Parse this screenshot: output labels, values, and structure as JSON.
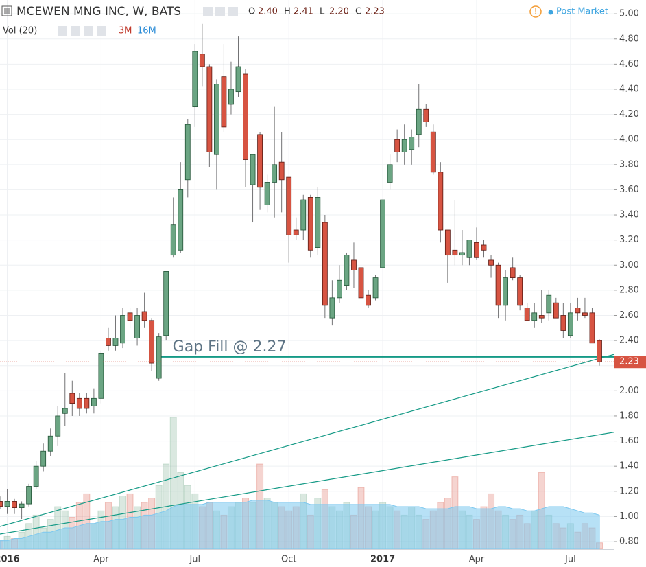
{
  "chart_data": {
    "type": "candlestick",
    "title": "MCEWEN MNG INC, W, BATS",
    "ohlc_legend": [
      {
        "label": "O",
        "value": "2.40"
      },
      {
        "label": "H",
        "value": "2.41"
      },
      {
        "label": "L",
        "value": "2.20"
      },
      {
        "label": "C",
        "value": "2.23"
      }
    ],
    "volume_legend": {
      "label": "Vol (20)",
      "volume": "3M",
      "ma": "16M"
    },
    "status": "Post Market",
    "categories": [
      null,
      "2016",
      null,
      null,
      null,
      null,
      null,
      null,
      null,
      null,
      null,
      null,
      null,
      null,
      "Apr",
      null,
      null,
      null,
      null,
      null,
      null,
      null,
      null,
      null,
      null,
      null,
      null,
      "Jul",
      null,
      null,
      null,
      null,
      null,
      null,
      null,
      null,
      null,
      null,
      null,
      null,
      "Oct",
      null,
      null,
      null,
      null,
      null,
      null,
      null,
      null,
      null,
      null,
      null,
      null,
      "2017",
      null,
      null,
      null,
      null,
      null,
      null,
      null,
      null,
      null,
      null,
      null,
      null,
      "Apr",
      null,
      null,
      null,
      null,
      null,
      null,
      null,
      null,
      null,
      null,
      null,
      null,
      "Jul",
      null,
      null,
      null,
      null
    ],
    "open": [
      1.12,
      1.08,
      1.12,
      1.07,
      1.1,
      1.24,
      1.4,
      1.52,
      1.64,
      1.82,
      1.98,
      1.94,
      1.94,
      1.88,
      1.94,
      2.42,
      2.36,
      2.38,
      2.62,
      2.42,
      2.63,
      2.56,
      2.1,
      2.44,
      3.08,
      3.12,
      3.68,
      4.26,
      4.68,
      4.58,
      3.88,
      4.5,
      4.28,
      4.38,
      4.52,
      3.64,
      4.04,
      3.48,
      3.66,
      3.82,
      3.7,
      3.28,
      3.28,
      3.54,
      3.14,
      3.34,
      2.58,
      2.74,
      2.84,
      3.04,
      2.98,
      2.76,
      2.74,
      2.98,
      3.66,
      4.0,
      3.9,
      3.92,
      4.04,
      4.24,
      4.06,
      3.74,
      3.28,
      3.12,
      3.08,
      3.06,
      3.18,
      3.16,
      3.04,
      3.0,
      2.68,
      2.98,
      2.9,
      2.66,
      2.56,
      2.6,
      2.62,
      2.7,
      2.6,
      2.44,
      2.66,
      2.62,
      2.62,
      2.4
    ],
    "high": [
      1.16,
      1.22,
      1.14,
      1.12,
      1.26,
      1.44,
      1.58,
      1.7,
      1.88,
      2.14,
      2.08,
      1.98,
      1.98,
      2.02,
      2.32,
      2.5,
      2.6,
      2.66,
      2.66,
      2.66,
      2.78,
      2.58,
      2.46,
      2.95,
      3.54,
      3.82,
      4.16,
      4.76,
      4.92,
      4.6,
      4.48,
      4.76,
      4.62,
      4.82,
      4.56,
      3.88,
      4.06,
      3.72,
      4.26,
      4.06,
      3.7,
      3.38,
      3.56,
      3.56,
      3.62,
      3.4,
      2.88,
      3.0,
      3.1,
      3.18,
      3.02,
      2.8,
      2.92,
      3.52,
      3.88,
      4.08,
      4.12,
      4.08,
      4.44,
      4.28,
      4.12,
      3.82,
      3.28,
      3.52,
      3.28,
      3.2,
      3.3,
      3.2,
      3.08,
      3.02,
      2.96,
      3.06,
      2.92,
      2.7,
      2.7,
      2.8,
      2.8,
      2.74,
      2.7,
      2.7,
      2.74,
      2.74,
      2.66,
      2.41
    ],
    "low": [
      1.06,
      1.02,
      1.02,
      0.98,
      1.08,
      1.22,
      1.36,
      1.48,
      1.56,
      1.72,
      1.8,
      1.8,
      1.82,
      1.82,
      1.9,
      2.32,
      2.32,
      2.34,
      2.5,
      2.36,
      2.5,
      2.16,
      2.08,
      2.4,
      3.06,
      3.1,
      3.54,
      4.1,
      4.42,
      3.78,
      3.6,
      4.06,
      4.2,
      4.34,
      3.62,
      3.34,
      3.44,
      3.42,
      3.38,
      3.42,
      3.02,
      3.2,
      3.2,
      3.06,
      3.08,
      2.58,
      2.52,
      2.7,
      2.8,
      2.82,
      2.66,
      2.66,
      2.72,
      2.98,
      3.6,
      3.82,
      3.8,
      3.8,
      3.94,
      4.1,
      3.72,
      3.18,
      2.86,
      3.0,
      3.0,
      3.0,
      3.04,
      3.06,
      2.9,
      2.58,
      2.56,
      2.88,
      2.64,
      2.56,
      2.5,
      2.54,
      2.56,
      2.58,
      2.42,
      2.42,
      2.56,
      2.58,
      2.38,
      2.2
    ],
    "close": [
      1.08,
      1.12,
      1.07,
      1.1,
      1.24,
      1.4,
      1.52,
      1.64,
      1.8,
      1.86,
      1.9,
      1.86,
      1.86,
      1.94,
      2.3,
      2.36,
      2.42,
      2.6,
      2.56,
      2.6,
      2.56,
      2.22,
      2.43,
      2.95,
      3.32,
      3.6,
      4.12,
      4.7,
      4.58,
      3.9,
      4.44,
      4.1,
      4.4,
      4.58,
      3.84,
      3.88,
      3.62,
      3.66,
      3.8,
      3.68,
      3.24,
      3.24,
      3.52,
      3.12,
      3.54,
      2.68,
      2.74,
      2.88,
      3.08,
      2.96,
      2.74,
      2.68,
      2.9,
      3.52,
      3.8,
      3.9,
      4.0,
      4.02,
      4.24,
      4.14,
      3.74,
      3.28,
      3.08,
      3.08,
      3.1,
      3.2,
      3.06,
      3.12,
      3.0,
      2.68,
      2.9,
      2.9,
      2.68,
      2.56,
      2.62,
      2.58,
      2.76,
      2.58,
      2.48,
      2.62,
      2.62,
      2.6,
      2.38,
      2.23
    ],
    "volume": [
      4,
      6,
      5,
      8,
      12,
      16,
      10,
      14,
      20,
      18,
      15,
      22,
      26,
      12,
      18,
      22,
      20,
      25,
      26,
      20,
      22,
      24,
      30,
      40,
      62,
      36,
      30,
      26,
      20,
      22,
      18,
      16,
      20,
      22,
      24,
      22,
      40,
      24,
      22,
      20,
      18,
      20,
      26,
      16,
      24,
      28,
      20,
      18,
      22,
      16,
      29,
      20,
      18,
      22,
      20,
      18,
      16,
      20,
      16,
      14,
      18,
      22,
      24,
      34,
      18,
      16,
      14,
      20,
      26,
      18,
      16,
      14,
      16,
      12,
      18,
      36,
      16,
      12,
      10,
      12,
      8,
      12,
      10,
      3
    ],
    "volume_ma": [
      4,
      4,
      5,
      5,
      6,
      7,
      8,
      8,
      9,
      10,
      10,
      11,
      12,
      12,
      13,
      13,
      14,
      14,
      15,
      15,
      16,
      16,
      17,
      18,
      20,
      21,
      21,
      21,
      21,
      22,
      22,
      22,
      22,
      22,
      22,
      23,
      23,
      23,
      22,
      22,
      22,
      22,
      22,
      21,
      21,
      21,
      21,
      21,
      21,
      21,
      21,
      21,
      21,
      21,
      21,
      20,
      20,
      20,
      20,
      19,
      19,
      19,
      19,
      20,
      20,
      20,
      19,
      19,
      19,
      20,
      20,
      19,
      19,
      18,
      18,
      19,
      20,
      20,
      20,
      19,
      18,
      17,
      17,
      16
    ],
    "up_color": "#6ba583",
    "down_color": "#d75442",
    "ma_color": "#7cc8ef",
    "ylim": [
      0.74,
      5.11
    ],
    "yticks": [
      {
        "value": 0.8,
        "label": "0.80"
      },
      {
        "value": 1.0,
        "label": "1.00"
      },
      {
        "value": 1.2,
        "label": "1.20"
      },
      {
        "value": 1.4,
        "label": "1.40"
      },
      {
        "value": 1.6,
        "label": "1.60"
      },
      {
        "value": 1.8,
        "label": "1.80"
      },
      {
        "value": 2.0,
        "label": "2.00"
      },
      {
        "value": 2.2,
        "label": "2.20"
      },
      {
        "value": 2.4,
        "label": "2.40"
      },
      {
        "value": 2.6,
        "label": "2.60"
      },
      {
        "value": 2.8,
        "label": "2.80"
      },
      {
        "value": 3.0,
        "label": "3.00"
      },
      {
        "value": 3.2,
        "label": "3.20"
      },
      {
        "value": 3.4,
        "label": "3.40"
      },
      {
        "value": 3.6,
        "label": "3.60"
      },
      {
        "value": 3.8,
        "label": "3.80"
      },
      {
        "value": 4.0,
        "label": "4.00"
      },
      {
        "value": 4.2,
        "label": "4.20"
      },
      {
        "value": 4.4,
        "label": "4.40"
      },
      {
        "value": 4.6,
        "label": "4.60"
      },
      {
        "value": 4.8,
        "label": "4.80"
      },
      {
        "value": 5.0,
        "label": "5.00"
      }
    ],
    "vlim": [
      0,
      80
    ],
    "grid": true,
    "trendlines": [
      {
        "x": [
          0,
          85
        ],
        "y": [
          0.92,
          2.29
        ]
      },
      {
        "x": [
          0,
          85
        ],
        "y": [
          0.86,
          1.67
        ]
      },
      {
        "x": [
          22,
          85
        ],
        "y": [
          2.27,
          2.27
        ]
      }
    ],
    "annotation": "Gap Fill @ 2.27"
  }
}
